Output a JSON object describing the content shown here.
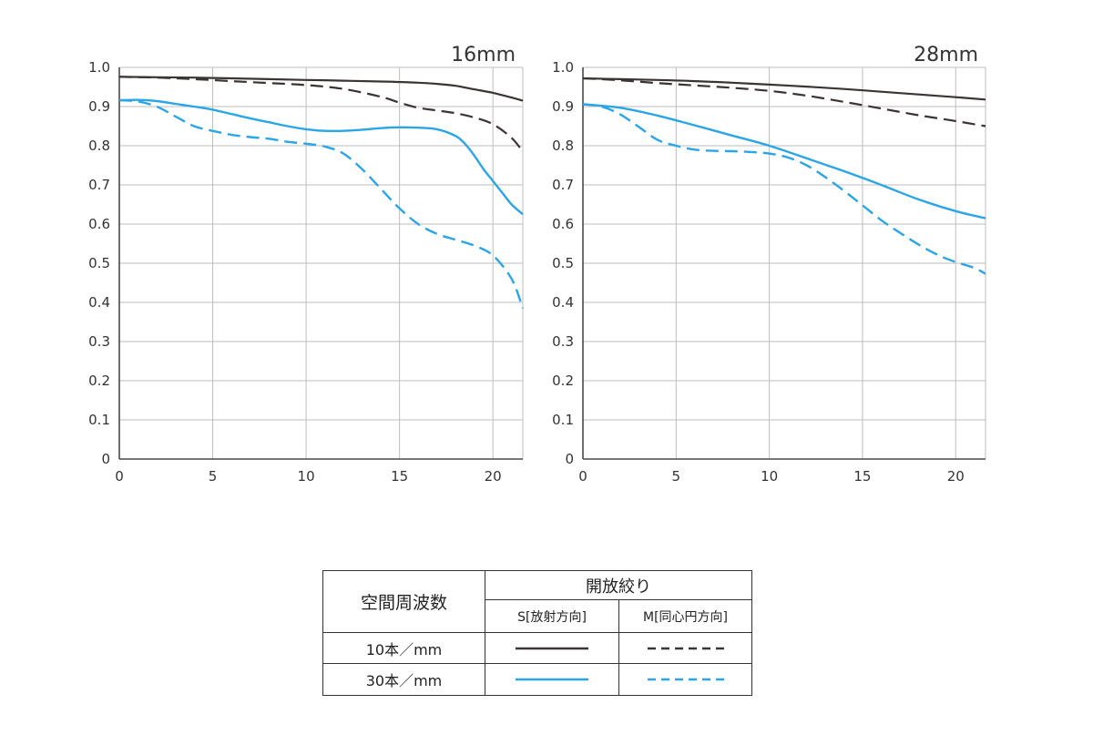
{
  "chart_data": [
    {
      "type": "line",
      "title": "16mm",
      "xlim": [
        0,
        21.6
      ],
      "ylim": [
        0,
        1
      ],
      "x_ticks": [
        "0",
        "5",
        "10",
        "15",
        "20"
      ],
      "y_ticks": [
        "0",
        "0.1",
        "0.2",
        "0.3",
        "0.4",
        "0.5",
        "0.6",
        "0.7",
        "0.8",
        "0.9",
        "1.0"
      ],
      "grid": true,
      "series": [
        {
          "key": "10s",
          "x": [
            0,
            2,
            4,
            6,
            8,
            10,
            12,
            14,
            16,
            17,
            18,
            19,
            20,
            21,
            21.6
          ],
          "y": [
            0.976,
            0.975,
            0.974,
            0.972,
            0.97,
            0.968,
            0.966,
            0.964,
            0.961,
            0.958,
            0.953,
            0.944,
            0.935,
            0.923,
            0.915
          ]
        },
        {
          "key": "10m",
          "x": [
            0,
            2,
            4,
            6,
            8,
            10,
            12,
            14,
            15,
            16,
            17,
            18,
            19,
            20,
            21,
            21.6
          ],
          "y": [
            0.976,
            0.974,
            0.97,
            0.965,
            0.96,
            0.955,
            0.945,
            0.925,
            0.91,
            0.897,
            0.89,
            0.883,
            0.872,
            0.855,
            0.82,
            0.785
          ]
        },
        {
          "key": "30s",
          "x": [
            0,
            1,
            2,
            3,
            4,
            5,
            6,
            7,
            8,
            9,
            10,
            11,
            12,
            13,
            14,
            15,
            16,
            17,
            18,
            18.5,
            19,
            19.5,
            20,
            20.5,
            21,
            21.6
          ],
          "y": [
            0.916,
            0.917,
            0.914,
            0.907,
            0.9,
            0.892,
            0.881,
            0.87,
            0.86,
            0.85,
            0.842,
            0.838,
            0.838,
            0.841,
            0.845,
            0.847,
            0.846,
            0.842,
            0.825,
            0.805,
            0.775,
            0.74,
            0.71,
            0.68,
            0.65,
            0.625
          ]
        },
        {
          "key": "30m",
          "x": [
            0,
            1,
            2,
            3,
            4,
            5,
            6,
            7,
            8,
            9,
            10,
            11,
            12,
            13,
            14,
            15,
            16,
            17,
            18,
            19,
            20,
            21,
            21.6
          ],
          "y": [
            0.916,
            0.913,
            0.9,
            0.875,
            0.85,
            0.838,
            0.828,
            0.822,
            0.818,
            0.81,
            0.805,
            0.798,
            0.78,
            0.74,
            0.69,
            0.64,
            0.6,
            0.575,
            0.56,
            0.545,
            0.52,
            0.46,
            0.385
          ]
        }
      ]
    },
    {
      "type": "line",
      "title": "28mm",
      "xlim": [
        0,
        21.6
      ],
      "ylim": [
        0,
        1
      ],
      "x_ticks": [
        "0",
        "5",
        "10",
        "15",
        "20"
      ],
      "y_ticks": [
        "0",
        "0.1",
        "0.2",
        "0.3",
        "0.4",
        "0.5",
        "0.6",
        "0.7",
        "0.8",
        "0.9",
        "1.0"
      ],
      "grid": true,
      "series": [
        {
          "key": "10s",
          "x": [
            0,
            2,
            4,
            6,
            8,
            10,
            12,
            14,
            16,
            18,
            20,
            21.6
          ],
          "y": [
            0.972,
            0.97,
            0.968,
            0.965,
            0.961,
            0.956,
            0.951,
            0.945,
            0.938,
            0.931,
            0.924,
            0.918
          ]
        },
        {
          "key": "10m",
          "x": [
            0,
            2,
            4,
            6,
            8,
            10,
            12,
            14,
            16,
            18,
            20,
            21.6
          ],
          "y": [
            0.972,
            0.967,
            0.96,
            0.954,
            0.948,
            0.94,
            0.928,
            0.912,
            0.895,
            0.878,
            0.863,
            0.85
          ]
        },
        {
          "key": "30s",
          "x": [
            0,
            2,
            4,
            6,
            8,
            10,
            12,
            14,
            16,
            18,
            20,
            21.6
          ],
          "y": [
            0.906,
            0.897,
            0.877,
            0.852,
            0.826,
            0.8,
            0.768,
            0.735,
            0.7,
            0.663,
            0.633,
            0.615
          ]
        },
        {
          "key": "30m",
          "x": [
            0,
            1,
            2,
            3,
            4,
            5,
            6,
            7,
            8,
            9,
            10,
            11,
            12,
            13,
            14,
            15,
            16,
            17,
            18,
            19,
            20,
            21,
            21.6
          ],
          "y": [
            0.906,
            0.9,
            0.88,
            0.848,
            0.815,
            0.8,
            0.79,
            0.787,
            0.786,
            0.784,
            0.78,
            0.77,
            0.75,
            0.72,
            0.685,
            0.648,
            0.61,
            0.578,
            0.548,
            0.522,
            0.503,
            0.488,
            0.473
          ]
        }
      ]
    }
  ],
  "legend": {
    "row_header": "空間周波数",
    "column_group": "開放絞り",
    "column_s": "S[放射方向]",
    "column_m": "M[同心円方向]",
    "rows": [
      {
        "label": "10本／mm",
        "key": "10"
      },
      {
        "label": "30本／mm",
        "key": "30"
      }
    ]
  },
  "colors": {
    "line_10": "#3a3433",
    "line_30": "#2aa5e8",
    "grid": "#bdbdbd",
    "axis": "#4a4a4a"
  }
}
